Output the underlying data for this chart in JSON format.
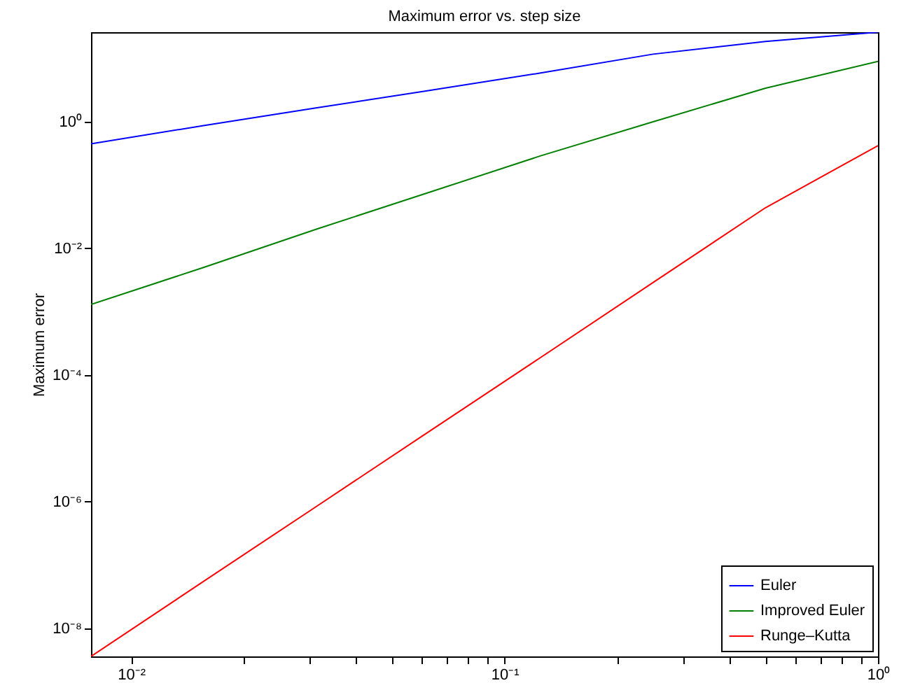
{
  "chart_data": {
    "type": "line",
    "title": "Maximum error vs. step size",
    "ylabel": "Maximum error",
    "log": "xy",
    "grid": false,
    "legend": "bottom right",
    "x": [
      0.0078125,
      0.015625,
      0.03125,
      0.0625,
      0.125,
      0.25,
      0.5,
      1
    ],
    "xlim": [
      0.0078125,
      1
    ],
    "xticks": [
      {
        "value": 0.01,
        "label": "10⁻²"
      },
      {
        "value": 0.02,
        "label": null
      },
      {
        "value": 0.03,
        "label": null
      },
      {
        "value": 0.04,
        "label": null
      },
      {
        "value": 0.05,
        "label": null
      },
      {
        "value": 0.06,
        "label": null
      },
      {
        "value": 0.07,
        "label": null
      },
      {
        "value": 0.08,
        "label": null
      },
      {
        "value": 0.09,
        "label": null
      },
      {
        "value": 0.1,
        "label": "10⁻¹"
      },
      {
        "value": 0.2,
        "label": null
      },
      {
        "value": 0.3,
        "label": null
      },
      {
        "value": 0.4,
        "label": null
      },
      {
        "value": 0.5,
        "label": null
      },
      {
        "value": 0.6,
        "label": null
      },
      {
        "value": 0.7,
        "label": null
      },
      {
        "value": 0.8,
        "label": null
      },
      {
        "value": 0.9,
        "label": null
      },
      {
        "value": 1,
        "label": "10⁰"
      }
    ],
    "ylim": [
      3.6e-09,
      26
    ],
    "yticks": [
      {
        "value": 1e-08,
        "label": "10⁻⁸"
      },
      {
        "value": 1e-06,
        "label": "10⁻⁶"
      },
      {
        "value": 0.0001,
        "label": "10⁻⁴"
      },
      {
        "value": 0.01,
        "label": "10⁻²"
      },
      {
        "value": 1,
        "label": "10⁰"
      }
    ],
    "series": [
      {
        "name": "Euler",
        "color": "#0000ff",
        "values": [
          0.45,
          0.87,
          1.65,
          3.1,
          5.9,
          11.7,
          18.6,
          26
        ]
      },
      {
        "name": "Improved Euler",
        "color": "#008000",
        "values": [
          0.0013,
          0.005,
          0.02,
          0.076,
          0.29,
          1.0,
          3.4,
          9.0
        ]
      },
      {
        "name": "Runge–Kutta",
        "color": "#ff0000",
        "values": [
          3.6e-09,
          5.5e-08,
          8.3e-07,
          1.26e-05,
          0.00019,
          0.0029,
          0.044,
          0.42
        ]
      }
    ]
  }
}
